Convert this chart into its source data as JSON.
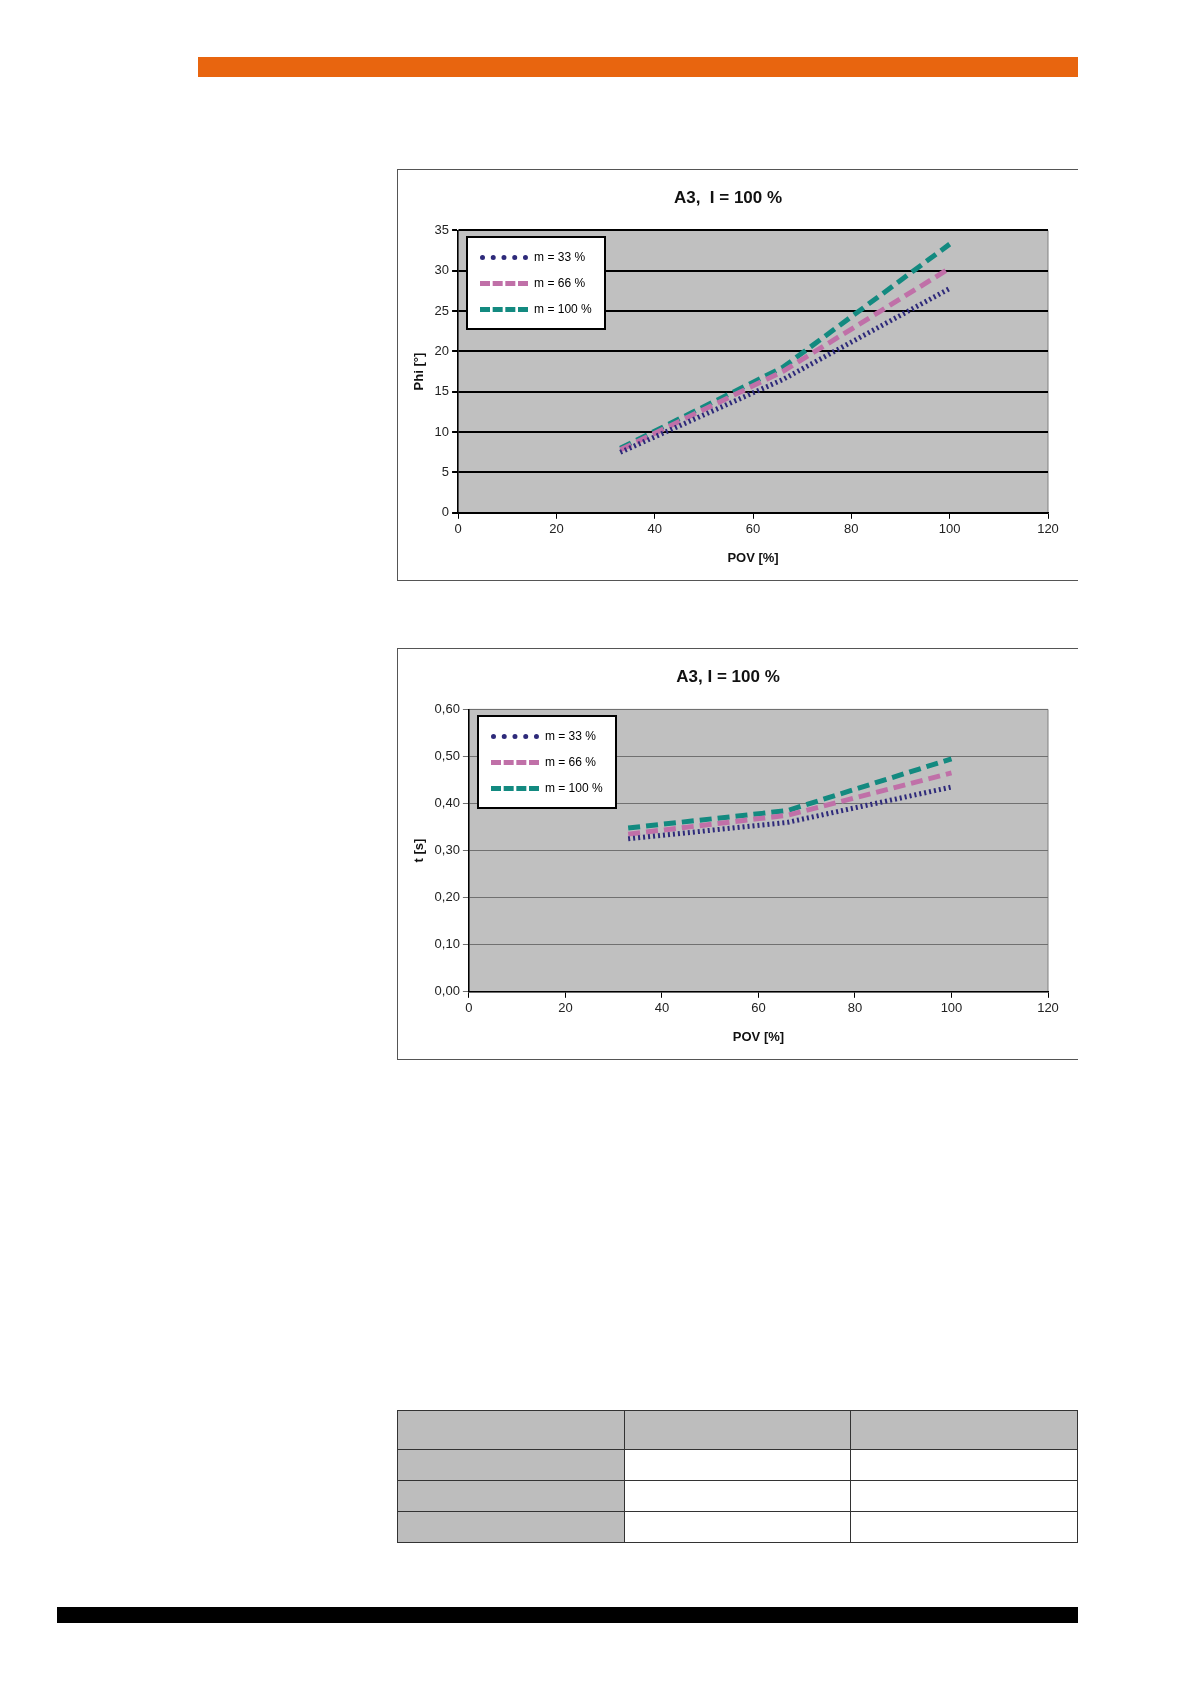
{
  "chart_data": [
    {
      "type": "line",
      "title": "A3,  I = 100 %",
      "xlabel": "POV [%]",
      "ylabel": "Phi [°]",
      "x": [
        33,
        66,
        100
      ],
      "series": [
        {
          "name": "m = 33 %",
          "color": "#2e2a7a",
          "line_style": "dotted",
          "values": [
            7.5,
            16.5,
            27.8
          ]
        },
        {
          "name": "m = 66 %",
          "color": "#c070a8",
          "line_style": "dashed",
          "values": [
            7.8,
            17.5,
            30.3
          ]
        },
        {
          "name": "m = 100 %",
          "color": "#138a80",
          "line_style": "dashed",
          "values": [
            8,
            18,
            33.3
          ]
        }
      ],
      "xlim": [
        0,
        120
      ],
      "xticks": [
        0,
        20,
        40,
        60,
        80,
        100,
        120
      ],
      "ylim": [
        0,
        35
      ],
      "yticks": [
        0,
        5,
        10,
        15,
        20,
        25,
        30,
        35
      ],
      "grid": "y",
      "legend": "top left",
      "marker": "none"
    },
    {
      "type": "line",
      "title": "A3, I = 100 %",
      "xlabel": "POV [%]",
      "ylabel": "t [s]",
      "x": [
        33,
        66,
        100
      ],
      "series": [
        {
          "name": "m = 33 %",
          "color": "#2e2a7a",
          "line_style": "dotted",
          "values": [
            0.325,
            0.36,
            0.435
          ]
        },
        {
          "name": "m = 66 %",
          "color": "#c070a8",
          "line_style": "dashed",
          "values": [
            0.335,
            0.375,
            0.465
          ]
        },
        {
          "name": "m = 100 %",
          "color": "#138a80",
          "line_style": "dashed",
          "values": [
            0.348,
            0.385,
            0.495
          ]
        }
      ],
      "xlim": [
        0,
        120
      ],
      "xticks": [
        0,
        20,
        40,
        60,
        80,
        100,
        120
      ],
      "ylim": [
        0,
        0.6
      ],
      "yticks": [
        {
          "value": 0,
          "label": "0,00"
        },
        {
          "value": 0.1,
          "label": "0,10"
        },
        {
          "value": 0.2,
          "label": "0,20"
        },
        {
          "value": 0.3,
          "label": "0,30"
        },
        {
          "value": 0.4,
          "label": "0,40"
        },
        {
          "value": 0.5,
          "label": "0,50"
        },
        {
          "value": 0.6,
          "label": "0,60"
        }
      ],
      "grid": "y",
      "legend": "top left",
      "marker": "none"
    }
  ]
}
